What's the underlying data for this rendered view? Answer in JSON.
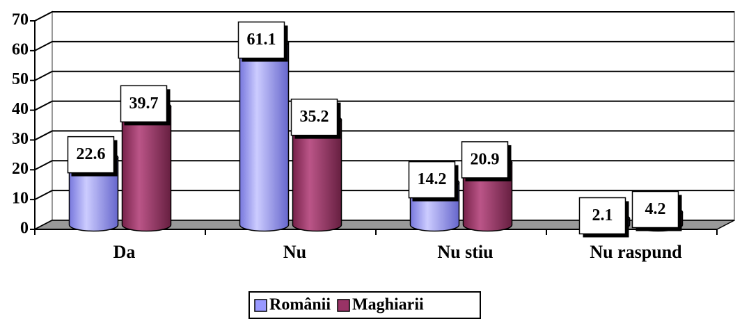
{
  "chart_data": {
    "type": "bar",
    "categories": [
      "Da",
      "Nu",
      "Nu stiu",
      "Nu raspund"
    ],
    "series": [
      {
        "name": "Românii",
        "color": "#9999ff",
        "values": [
          22.6,
          61.1,
          14.2,
          2.1
        ]
      },
      {
        "name": "Maghiarii",
        "color": "#993366",
        "values": [
          39.7,
          35.2,
          20.9,
          4.2
        ]
      }
    ],
    "ylim": [
      0,
      70
    ],
    "yticks": [
      0,
      10,
      20,
      30,
      40,
      50,
      60,
      70
    ],
    "grid": true,
    "legend": "bottom"
  }
}
